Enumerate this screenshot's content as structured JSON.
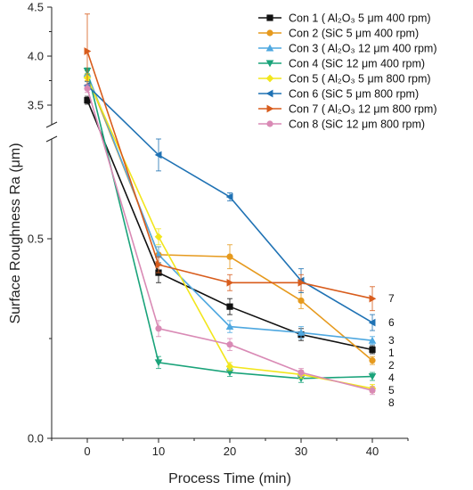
{
  "chart_data": {
    "type": "line",
    "xlabel": "Process Time (min)",
    "ylabel": "Surface Roughness Ra (μm)",
    "x": [
      0,
      10,
      20,
      30,
      40
    ],
    "xlim": [
      -5,
      45
    ],
    "x_ticks": [
      "0",
      "10",
      "20",
      "30",
      "40"
    ],
    "y_axis_break": true,
    "ylim_lower": [
      0.0,
      0.75
    ],
    "ylim_upper": [
      3.3,
      4.5
    ],
    "y_ticks": [
      "0.0",
      "0.5",
      "3.5",
      "4.0",
      "4.5"
    ],
    "legend_position": "top-right",
    "series": [
      {
        "name": "Con 1 ( Al₂O₃ 5 μm 400 rpm)",
        "end_label": "1",
        "color": "#111111",
        "marker": "square",
        "values": [
          3.55,
          0.415,
          0.33,
          0.26,
          0.222
        ],
        "errors": [
          0.04,
          0.025,
          0.02,
          0.015,
          0.01
        ]
      },
      {
        "name": "Con 2 (SiC 5 μm 400 rpm)",
        "end_label": "2",
        "color": "#e69a1e",
        "marker": "circle",
        "values": [
          3.8,
          0.46,
          0.455,
          0.345,
          0.195
        ],
        "errors": [
          0.05,
          0.02,
          0.03,
          0.02,
          0.01
        ]
      },
      {
        "name": "Con 3 ( Al₂O₃ 12 μm 400 rpm)",
        "end_label": "3",
        "color": "#4fa8e0",
        "marker": "triangle-up",
        "values": [
          3.82,
          0.46,
          0.28,
          0.265,
          0.245
        ],
        "errors": [
          0.04,
          0.02,
          0.015,
          0.015,
          0.01
        ]
      },
      {
        "name": "Con 4 (SiC 12 μm 400 rpm)",
        "end_label": "4",
        "color": "#1aa37a",
        "marker": "triangle-down",
        "values": [
          3.85,
          0.19,
          0.165,
          0.15,
          0.155
        ],
        "errors": [
          0.03,
          0.015,
          0.01,
          0.01,
          0.01
        ]
      },
      {
        "name": "Con 5 ( Al₂O₃ 5 μm 800 rpm)",
        "end_label": "5",
        "color": "#f2e61c",
        "marker": "diamond",
        "values": [
          3.78,
          0.505,
          0.18,
          0.16,
          0.125
        ],
        "errors": [
          0.04,
          0.02,
          0.01,
          0.01,
          0.01
        ]
      },
      {
        "name": "Con 6 (SiC 5 μm 800 rpm)",
        "end_label": "6",
        "color": "#1f72b4",
        "marker": "triangle-left",
        "values": [
          3.7,
          0.71,
          0.605,
          0.395,
          0.29
        ],
        "errors": [
          0.04,
          0.04,
          0.01,
          0.03,
          0.02
        ]
      },
      {
        "name": "Con 7 ( Al₂O₃ 12 μm 800 rpm)",
        "end_label": "7",
        "color": "#d85c1c",
        "marker": "triangle-right",
        "values": [
          4.05,
          0.435,
          0.39,
          0.39,
          0.35
        ],
        "errors": [
          0.38,
          0.02,
          0.02,
          0.02,
          0.03
        ]
      },
      {
        "name": "Con 8 (SiC 12 μm 800 rpm)",
        "end_label": "8",
        "color": "#d98ab5",
        "marker": "circle",
        "values": [
          3.67,
          0.275,
          0.235,
          0.165,
          0.12
        ],
        "errors": [
          0.04,
          0.02,
          0.015,
          0.01,
          0.01
        ]
      }
    ]
  }
}
